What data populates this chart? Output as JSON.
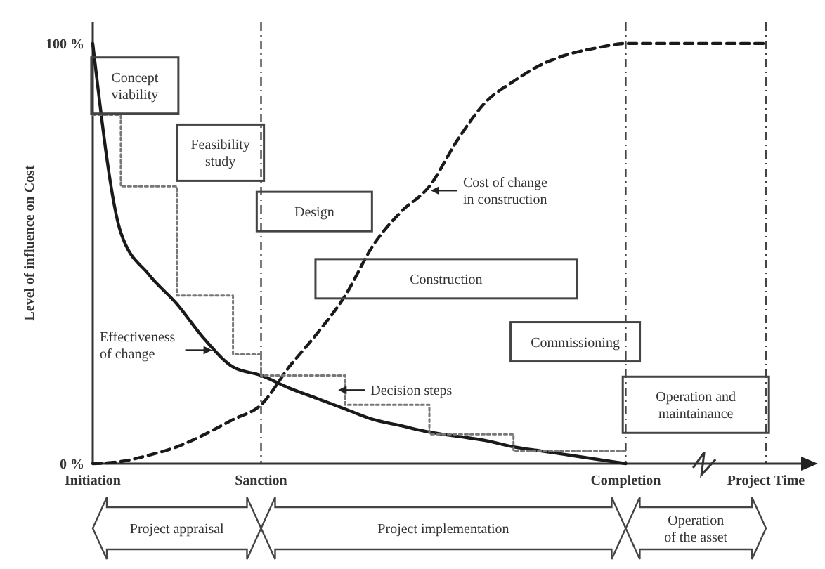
{
  "chart_data": {
    "type": "line",
    "ylabel": "Level of influence on Cost",
    "categories": [
      "Initiation",
      null,
      null,
      null,
      null,
      null,
      "Sanction",
      null,
      null,
      null,
      null,
      null,
      null,
      null,
      null,
      null,
      null,
      null,
      null,
      "Completion",
      null,
      null,
      null,
      null,
      "Project Time"
    ],
    "ylim": [
      0,
      105
    ],
    "yticks": [
      {
        "value": 0,
        "label": "0 %"
      },
      {
        "value": 100,
        "label": "100 %"
      }
    ],
    "grid": "x",
    "series": [
      {
        "color": "#1a1a1a",
        "line_style": "solid",
        "values": [
          100,
          55,
          45,
          38,
          29.5,
          23,
          21,
          18,
          15.5,
          13,
          10.5,
          9,
          7.5,
          6.5,
          5.5,
          4,
          3,
          2,
          1,
          0,
          null,
          null,
          null,
          null,
          null
        ]
      },
      {
        "color": "#1a1a1a",
        "line_style": "dashed",
        "values": [
          0,
          0.5,
          2,
          4,
          7,
          10.5,
          14,
          23,
          31,
          40,
          52,
          60,
          66,
          77,
          86,
          91,
          95,
          97.5,
          99,
          100,
          100,
          100,
          100,
          100,
          100
        ]
      },
      {
        "type": "step",
        "color": "#777777",
        "line_style": "dotted",
        "values": [
          83,
          66,
          66,
          40,
          40,
          26,
          21,
          21,
          21,
          14,
          14,
          14,
          7,
          7,
          7,
          3,
          3,
          3,
          3,
          3,
          null,
          null,
          null,
          null,
          null
        ]
      }
    ],
    "annotations": [
      "Concept viability",
      "Feasibility study",
      "Design",
      "Construction",
      "Commissioning",
      "Operation and maintainance",
      "Effectiveness of change",
      "Cost of change in construction",
      "Decision steps",
      "Project appraisal",
      "Project implementation",
      "Operation of the asset"
    ]
  }
}
